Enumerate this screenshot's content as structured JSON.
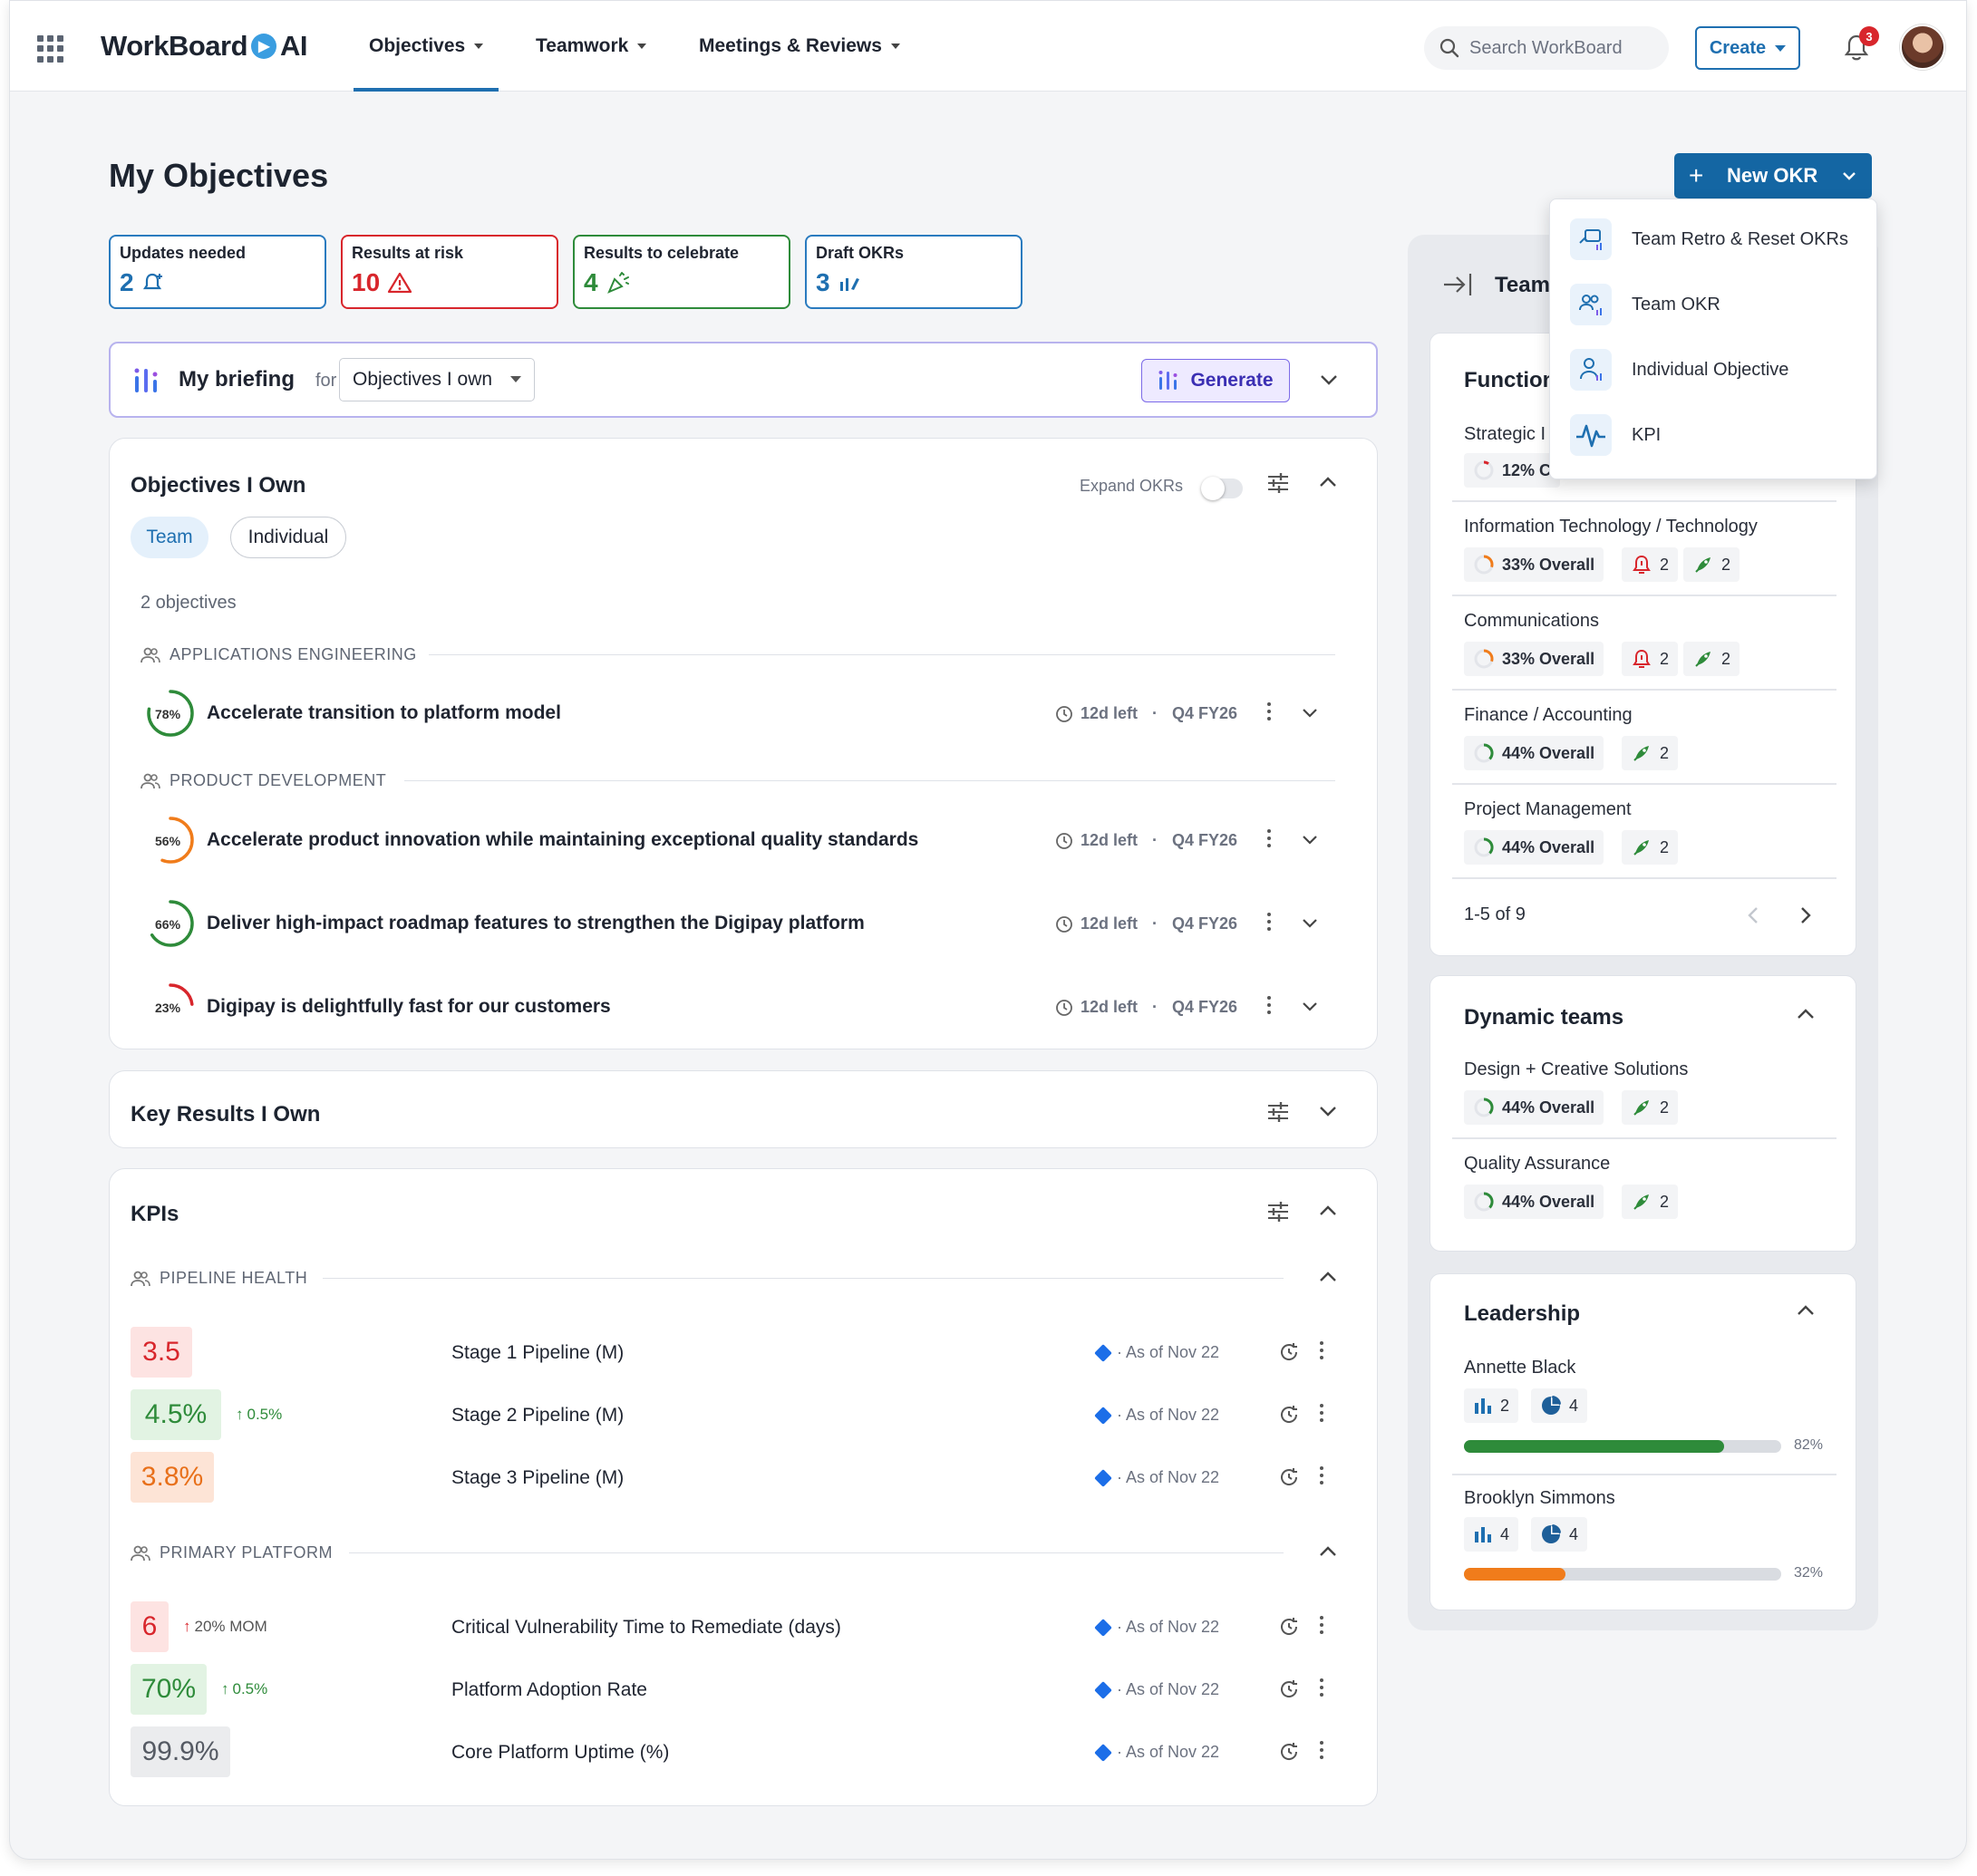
{
  "app": {
    "brand": "WorkBoard",
    "brand_ai": "AI"
  },
  "nav": {
    "items": [
      {
        "label": "Objectives"
      },
      {
        "label": "Teamwork"
      },
      {
        "label": "Meetings & Reviews"
      }
    ],
    "search_placeholder": "Search WorkBoard",
    "create_label": "Create",
    "notification_count": "3"
  },
  "page": {
    "title": "My Objectives",
    "new_okr_label": "New OKR"
  },
  "stats": [
    {
      "title": "Updates needed",
      "value": "2",
      "color": "#1e6fb0"
    },
    {
      "title": "Results at risk",
      "value": "10",
      "color": "#d8262c"
    },
    {
      "title": "Results to celebrate",
      "value": "4",
      "color": "#2e8b3a"
    },
    {
      "title": "Draft OKRs",
      "value": "3",
      "color": "#1e6fb0"
    }
  ],
  "briefing": {
    "title": "My briefing",
    "for_label": "for",
    "select_value": "Objectives I own",
    "generate_label": "Generate"
  },
  "objectives": {
    "title": "Objectives I Own",
    "expand_label": "Expand OKRs",
    "tabs": [
      "Team",
      "Individual"
    ],
    "count_label": "2 objectives",
    "groups": [
      {
        "label": "APPLICATIONS ENGINEERING"
      },
      {
        "label": "PRODUCT DEVELOPMENT"
      }
    ],
    "rows": [
      {
        "pct_label": "78%",
        "pct": 78,
        "color": "#2e8b3a",
        "title": "Accelerate transition to platform model",
        "time_left": "12d left",
        "period": "Q4 FY26"
      },
      {
        "pct_label": "56%",
        "pct": 56,
        "color": "#f07c1b",
        "title": "Accelerate product innovation while maintaining exceptional quality standards",
        "time_left": "12d left",
        "period": "Q4 FY26"
      },
      {
        "pct_label": "66%",
        "pct": 66,
        "color": "#2e8b3a",
        "title": "Deliver high-impact roadmap features to strengthen the Digipay platform",
        "time_left": "12d left",
        "period": "Q4 FY26"
      },
      {
        "pct_label": "23%",
        "pct": 23,
        "color": "#d8262c",
        "title": "Digipay is delightfully fast for our customers",
        "time_left": "12d left",
        "period": "Q4 FY26"
      }
    ]
  },
  "key_results": {
    "title": "Key Results I Own"
  },
  "kpis": {
    "title": "KPIs",
    "groups": [
      {
        "label": "PIPELINE HEALTH"
      },
      {
        "label": "PRIMARY PLATFORM"
      }
    ],
    "rows": [
      {
        "value": "3.5",
        "change": "",
        "name": "Stage 1 Pipeline (M)",
        "as_of": "· As of Nov 22",
        "bg": "#fde3e2",
        "fg": "#d8262c"
      },
      {
        "value": "4.5%",
        "change": "0.5%",
        "name": "Stage 2 Pipeline (M)",
        "as_of": "· As of Nov 22",
        "bg": "#e2f3e3",
        "fg": "#2e8b3a"
      },
      {
        "value": "3.8%",
        "change": "",
        "name": "Stage 3 Pipeline (M)",
        "as_of": "· As of Nov 22",
        "bg": "#fde4d6",
        "fg": "#e8701a"
      },
      {
        "value": "6",
        "change": "20% MOM",
        "name": "Critical Vulnerability Time to Remediate (days)",
        "as_of": "· As of Nov 22",
        "bg": "#fde3e2",
        "fg": "#d8262c"
      },
      {
        "value": "70%",
        "change": "0.5%",
        "name": "Platform Adoption Rate",
        "as_of": "· As of Nov 22",
        "bg": "#e2f3e3",
        "fg": "#2e8b3a"
      },
      {
        "value": "99.9%",
        "change": "",
        "name": "Core Platform Uptime (%)",
        "as_of": "· As of Nov 22",
        "bg": "#ebecee",
        "fg": "#555a63"
      }
    ]
  },
  "side": {
    "header": "Team",
    "functions": {
      "title": "Function",
      "partial": {
        "name": "Strategic I",
        "chip": "12% C"
      },
      "items": [
        {
          "name": "Information Technology / Technology",
          "overall": "33% Overall",
          "risk": "2",
          "celebrate": "2",
          "ring": "#f07c1b"
        },
        {
          "name": "Communications",
          "overall": "33% Overall",
          "risk": "2",
          "celebrate": "2",
          "ring": "#f07c1b"
        },
        {
          "name": "Finance / Accounting",
          "overall": "44% Overall",
          "risk": "",
          "celebrate": "2",
          "ring": "#2e8b3a"
        },
        {
          "name": "Project Management",
          "overall": "44% Overall",
          "risk": "",
          "celebrate": "2",
          "ring": "#2e8b3a"
        }
      ],
      "pager": "1-5 of 9"
    },
    "dynamic": {
      "title": "Dynamic teams",
      "items": [
        {
          "name": "Design + Creative Solutions",
          "overall": "44% Overall",
          "celebrate": "2"
        },
        {
          "name": "Quality Assurance",
          "overall": "44% Overall",
          "celebrate": "2"
        }
      ]
    },
    "leadership": {
      "title": "Leadership",
      "people": [
        {
          "name": "Annette Black",
          "kr": "2",
          "obj": "4",
          "progress": 82,
          "progress_label": "82%",
          "color": "#2e8b3a"
        },
        {
          "name": "Brooklyn Simmons",
          "kr": "4",
          "obj": "4",
          "progress": 32,
          "progress_label": "32%",
          "color": "#f07c1b"
        }
      ]
    }
  },
  "new_okr_menu": {
    "items": [
      {
        "label": "Team Retro & Reset OKRs"
      },
      {
        "label": "Team OKR"
      },
      {
        "label": "Individual Objective"
      },
      {
        "label": "KPI"
      }
    ]
  }
}
